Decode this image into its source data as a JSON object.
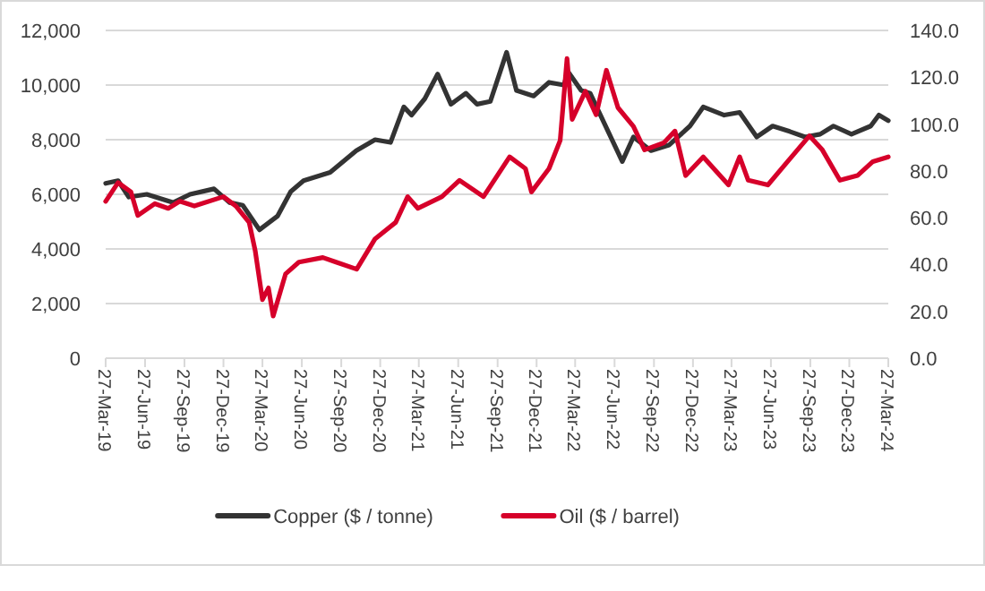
{
  "chart_data": {
    "type": "line",
    "xlim": [
      "2019-03-27",
      "2024-03-27"
    ],
    "xticks": [
      {
        "value": "2019-03-27",
        "label": "27-Mar-19"
      },
      {
        "value": "2019-06-27",
        "label": "27-Jun-19"
      },
      {
        "value": "2019-09-27",
        "label": "27-Sep-19"
      },
      {
        "value": "2019-12-27",
        "label": "27-Dec-19"
      },
      {
        "value": "2020-03-27",
        "label": "27-Mar-20"
      },
      {
        "value": "2020-06-27",
        "label": "27-Jun-20"
      },
      {
        "value": "2020-09-27",
        "label": "27-Sep-20"
      },
      {
        "value": "2020-12-27",
        "label": "27-Dec-20"
      },
      {
        "value": "2021-03-27",
        "label": "27-Mar-21"
      },
      {
        "value": "2021-06-27",
        "label": "27-Jun-21"
      },
      {
        "value": "2021-09-27",
        "label": "27-Sep-21"
      },
      {
        "value": "2021-12-27",
        "label": "27-Dec-21"
      },
      {
        "value": "2022-03-27",
        "label": "27-Mar-22"
      },
      {
        "value": "2022-06-27",
        "label": "27-Jun-22"
      },
      {
        "value": "2022-09-27",
        "label": "27-Sep-22"
      },
      {
        "value": "2022-12-27",
        "label": "27-Dec-22"
      },
      {
        "value": "2023-03-27",
        "label": "27-Mar-23"
      },
      {
        "value": "2023-06-27",
        "label": "27-Jun-23"
      },
      {
        "value": "2023-09-27",
        "label": "27-Sep-23"
      },
      {
        "value": "2023-12-27",
        "label": "27-Dec-23"
      },
      {
        "value": "2024-03-27",
        "label": "27-Mar-24"
      }
    ],
    "ylim": [
      0,
      12000
    ],
    "yticks": [
      {
        "value": 0,
        "label": "0"
      },
      {
        "value": 2000,
        "label": "2,000"
      },
      {
        "value": 4000,
        "label": "4,000"
      },
      {
        "value": 6000,
        "label": "6,000"
      },
      {
        "value": 8000,
        "label": "8,000"
      },
      {
        "value": 10000,
        "label": "10,000"
      },
      {
        "value": 12000,
        "label": "12,000"
      }
    ],
    "y2lim": [
      0,
      140
    ],
    "y2ticks": [
      {
        "value": 0,
        "label": "0.0"
      },
      {
        "value": 20,
        "label": "20.0"
      },
      {
        "value": 40,
        "label": "40.0"
      },
      {
        "value": 60,
        "label": "60.0"
      },
      {
        "value": 80,
        "label": "80.0"
      },
      {
        "value": 100,
        "label": "100.0"
      },
      {
        "value": 120,
        "label": "120.0"
      },
      {
        "value": 140,
        "label": "140.0"
      }
    ],
    "grid": "y",
    "legend": "bottom",
    "marker": "none",
    "line_style": "solid",
    "series": [
      {
        "name": "Copper ($ / tonne)",
        "color": "#333333",
        "x": [
          "2019-03-27",
          "2019-04-25",
          "2019-05-20",
          "2019-07-01",
          "2019-09-01",
          "2019-10-10",
          "2019-12-05",
          "2020-01-10",
          "2020-02-10",
          "2020-03-20",
          "2020-05-01",
          "2020-06-01",
          "2020-07-01",
          "2020-09-01",
          "2020-11-01",
          "2020-12-15",
          "2021-01-20",
          "2021-02-20",
          "2021-03-10",
          "2021-04-10",
          "2021-05-10",
          "2021-06-10",
          "2021-07-15",
          "2021-08-10",
          "2021-09-10",
          "2021-10-18",
          "2021-11-10",
          "2021-12-20",
          "2022-01-25",
          "2022-03-01",
          "2022-03-10",
          "2022-04-10",
          "2022-05-01",
          "2022-07-15",
          "2022-08-10",
          "2022-09-20",
          "2022-11-01",
          "2022-12-20",
          "2023-01-20",
          "2023-03-10",
          "2023-04-15",
          "2023-05-25",
          "2023-07-01",
          "2023-08-10",
          "2023-09-15",
          "2023-10-20",
          "2023-11-20",
          "2024-01-01",
          "2024-02-15",
          "2024-03-05",
          "2024-03-27"
        ],
        "values": [
          6400,
          6500,
          5900,
          6000,
          5700,
          6000,
          6200,
          5700,
          5600,
          4700,
          5200,
          6100,
          6500,
          6800,
          7600,
          8000,
          7900,
          9200,
          8900,
          9500,
          10400,
          9300,
          9700,
          9300,
          9400,
          11200,
          9800,
          9600,
          10100,
          10000,
          10500,
          9800,
          9700,
          7200,
          8100,
          7600,
          7800,
          8500,
          9200,
          8900,
          9000,
          8100,
          8500,
          8300,
          8100,
          8200,
          8500,
          8200,
          8500,
          8900,
          8700
        ]
      },
      {
        "name": "Oil ($ / barrel)",
        "color": "#d6002a",
        "axis": "y2",
        "x": [
          "2019-03-27",
          "2019-04-25",
          "2019-05-25",
          "2019-06-10",
          "2019-07-20",
          "2019-08-20",
          "2019-09-16",
          "2019-10-20",
          "2019-12-27",
          "2020-01-25",
          "2020-02-25",
          "2020-03-10",
          "2020-03-27",
          "2020-04-10",
          "2020-04-21",
          "2020-05-20",
          "2020-06-20",
          "2020-08-15",
          "2020-09-15",
          "2020-11-02",
          "2020-12-15",
          "2021-02-01",
          "2021-03-01",
          "2021-03-25",
          "2021-05-20",
          "2021-06-30",
          "2021-08-25",
          "2021-10-25",
          "2021-12-01",
          "2021-12-15",
          "2022-01-25",
          "2022-02-20",
          "2022-03-08",
          "2022-03-20",
          "2022-04-20",
          "2022-05-15",
          "2022-06-08",
          "2022-07-05",
          "2022-08-10",
          "2022-09-05",
          "2022-10-20",
          "2022-11-15",
          "2022-12-10",
          "2023-01-20",
          "2023-03-20",
          "2023-04-15",
          "2023-05-05",
          "2023-06-20",
          "2023-08-05",
          "2023-09-25",
          "2023-10-25",
          "2023-12-05",
          "2024-01-15",
          "2024-02-20",
          "2024-03-27"
        ],
        "values": [
          67,
          75,
          71,
          61,
          66,
          64,
          67,
          65,
          69,
          65,
          58,
          46,
          25,
          30,
          18,
          36,
          41,
          43,
          41,
          38,
          51,
          58,
          69,
          64,
          69,
          76,
          69,
          86,
          81,
          71,
          81,
          93,
          128,
          102,
          114,
          104,
          123,
          107,
          99,
          89,
          92,
          97,
          78,
          86,
          74,
          86,
          76,
          74,
          84,
          95,
          89,
          76,
          78,
          84,
          86
        ]
      }
    ]
  }
}
